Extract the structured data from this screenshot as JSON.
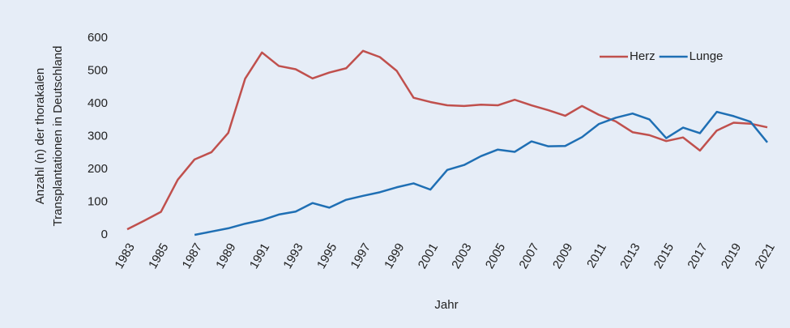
{
  "chart_data": {
    "type": "line",
    "y_label": [
      "Anzahl (n) der thorakalen",
      "Transplantationen in Deutschland"
    ],
    "x_label": "Jahr",
    "x": [
      1983,
      1984,
      1985,
      1986,
      1987,
      1988,
      1989,
      1990,
      1991,
      1992,
      1993,
      1994,
      1995,
      1996,
      1997,
      1998,
      1999,
      2000,
      2001,
      2002,
      2003,
      2004,
      2005,
      2006,
      2007,
      2008,
      2009,
      2010,
      2011,
      2012,
      2013,
      2014,
      2015,
      2016,
      2017,
      2018,
      2019,
      2020,
      2021
    ],
    "series": [
      {
        "name": "Herz",
        "color": "#c0504d",
        "values": [
          17,
          43,
          70,
          168,
          230,
          252,
          311,
          476,
          556,
          515,
          505,
          477,
          495,
          508,
          561,
          542,
          500,
          418,
          405,
          395,
          393,
          397,
          395,
          412,
          395,
          380,
          363,
          393,
          366,
          346,
          313,
          304,
          286,
          297,
          257,
          318,
          342,
          339,
          328
        ]
      },
      {
        "name": "Lunge",
        "color": "#1f6fb4",
        "values": [
          null,
          null,
          null,
          null,
          0,
          10,
          20,
          34,
          45,
          62,
          71,
          97,
          83,
          107,
          119,
          130,
          145,
          157,
          138,
          198,
          213,
          240,
          260,
          253,
          285,
          270,
          271,
          298,
          338,
          357,
          370,
          352,
          295,
          327,
          310,
          375,
          362,
          345,
          282
        ]
      }
    ],
    "xlim": [
      1983,
      2021
    ],
    "xticks": [
      1983,
      1985,
      1987,
      1989,
      1991,
      1993,
      1995,
      1997,
      1999,
      2001,
      2003,
      2005,
      2007,
      2009,
      2011,
      2013,
      2015,
      2017,
      2019,
      2021
    ],
    "ylim": [
      0,
      600
    ],
    "yticks": [
      0,
      100,
      200,
      300,
      400,
      500,
      600
    ],
    "grid": false,
    "legend": "top-right"
  }
}
